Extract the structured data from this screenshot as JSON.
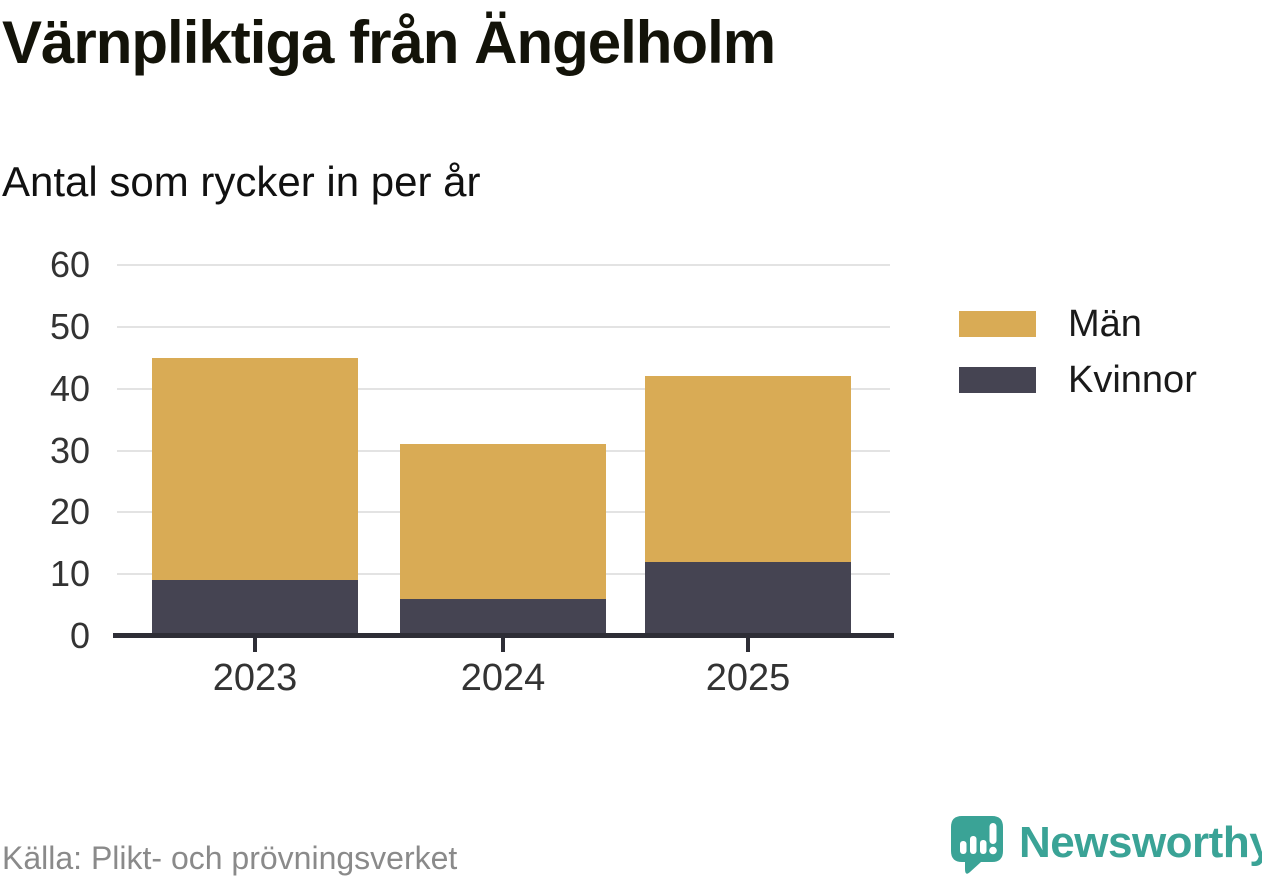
{
  "header": {
    "title": "Värnpliktiga från Ängelholm",
    "subtitle": "Antal som rycker in per år"
  },
  "chart_data": {
    "type": "bar",
    "stacked": true,
    "title": "Värnpliktiga från Ängelholm",
    "subtitle": "Antal som rycker in per år",
    "xlabel": "",
    "ylabel": "",
    "categories": [
      "2023",
      "2024",
      "2025"
    ],
    "series": [
      {
        "name": "Män",
        "color": "#D9AB55",
        "values": [
          36,
          25,
          30
        ]
      },
      {
        "name": "Kvinnor",
        "color": "#454452",
        "values": [
          9,
          6,
          12
        ]
      }
    ],
    "stack_totals": [
      45,
      31,
      42
    ],
    "ylim": [
      0,
      60
    ],
    "yticks": [
      0,
      10,
      20,
      30,
      40,
      50,
      60
    ],
    "grid": true,
    "legend_position": "right"
  },
  "legend": {
    "items": [
      {
        "label": "Män",
        "color": "#D9AB55"
      },
      {
        "label": "Kvinnor",
        "color": "#454452"
      }
    ]
  },
  "footer": {
    "source": "Källa: Plikt- och prövningsverket",
    "brand": "Newsworthy",
    "brand_color": "#3AA396"
  },
  "colors": {
    "axis": "#2E2E36",
    "grid": "#E3E3E3",
    "tick_text": "#333333"
  }
}
